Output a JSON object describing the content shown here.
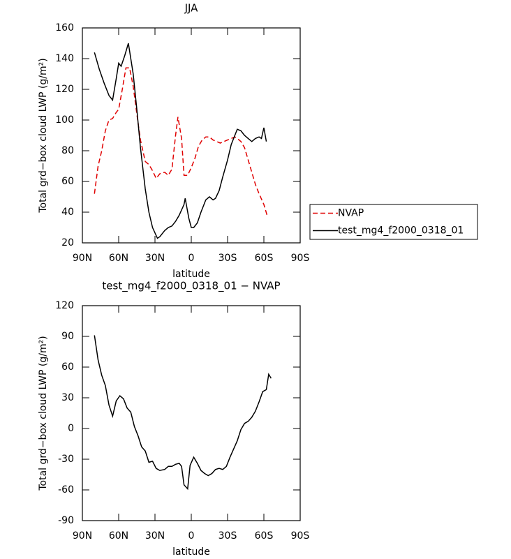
{
  "chart_data": [
    {
      "type": "line",
      "title": "JJA",
      "x_label": "latitude",
      "y_label": "Total grd−box cloud LWP (g/m²)",
      "xlim": [
        90,
        -90
      ],
      "xticks": [
        {
          "value": 90,
          "label": "90N"
        },
        {
          "value": 60,
          "label": "60N"
        },
        {
          "value": 30,
          "label": "30N"
        },
        0,
        {
          "value": -30,
          "label": "30S"
        },
        {
          "value": -60,
          "label": "60S"
        },
        {
          "value": -90,
          "label": "90S"
        }
      ],
      "ylim": [
        20,
        160
      ],
      "yticks": [
        20,
        40,
        60,
        80,
        100,
        120,
        140,
        160
      ],
      "legend_position": "right",
      "series": [
        {
          "name": "NVAP",
          "color": "#e00000",
          "dash": "dashed",
          "x": [
            80,
            77,
            74,
            71,
            68,
            65,
            62,
            60,
            57,
            54,
            51,
            48,
            45,
            42,
            38,
            35,
            32,
            29,
            26,
            22,
            19,
            16,
            13,
            11,
            8,
            6,
            3,
            0,
            -3,
            -6,
            -9,
            -12,
            -15,
            -18,
            -21,
            -24,
            -27,
            -30,
            -33,
            -36,
            -38,
            -41,
            -44,
            -47,
            -50,
            -53,
            -56,
            -60,
            -63
          ],
          "values": [
            52,
            70,
            80,
            93,
            100,
            101,
            105,
            107,
            120,
            134,
            134,
            122,
            104,
            87,
            73,
            71,
            67,
            62,
            65,
            66,
            64,
            68,
            90,
            102,
            88,
            64,
            64,
            69,
            75,
            83,
            87,
            89,
            89,
            87,
            86,
            85,
            86,
            87,
            88,
            89,
            88,
            86,
            82,
            74,
            66,
            58,
            52,
            45,
            37
          ]
        },
        {
          "name": "test_mg4_f2000_0318_01",
          "color": "#000000",
          "dash": "solid",
          "x": [
            80,
            76,
            72,
            68,
            65,
            62,
            60,
            58,
            55,
            52,
            48,
            45,
            42,
            38,
            35,
            32,
            28,
            26,
            22,
            19,
            16,
            13,
            10,
            6,
            5,
            2,
            0,
            -2,
            -5,
            -8,
            -12,
            -15,
            -18,
            -20,
            -23,
            -26,
            -30,
            -33,
            -36,
            -38,
            -41,
            -44,
            -47,
            -50,
            -53,
            -56,
            -58,
            -60,
            -62
          ],
          "values": [
            144,
            133,
            124,
            116,
            113,
            127,
            137,
            135,
            142,
            150,
            130,
            107,
            82,
            55,
            40,
            30,
            23,
            24,
            28,
            30,
            31,
            34,
            38,
            45,
            49,
            36,
            30,
            30,
            33,
            40,
            48,
            50,
            48,
            49,
            54,
            63,
            74,
            84,
            90,
            94,
            93,
            90,
            88,
            86,
            88,
            89,
            88,
            95,
            86
          ]
        }
      ]
    },
    {
      "type": "line",
      "title": "test_mg4_f2000_0318_01 − NVAP",
      "x_label": "latitude",
      "y_label": "Total grd−box cloud LWP (g/m²)",
      "xlim": [
        90,
        -90
      ],
      "xticks": [
        {
          "value": 90,
          "label": "90N"
        },
        {
          "value": 60,
          "label": "60N"
        },
        {
          "value": 30,
          "label": "30N"
        },
        0,
        {
          "value": -30,
          "label": "30S"
        },
        {
          "value": -60,
          "label": "60S"
        },
        {
          "value": -90,
          "label": "90S"
        }
      ],
      "ylim": [
        -90,
        120
      ],
      "yticks": [
        -90,
        -60,
        -30,
        0,
        30,
        60,
        90,
        120
      ],
      "series": [
        {
          "color": "#000000",
          "dash": "solid",
          "x": [
            80,
            77,
            74,
            71,
            68,
            65,
            62,
            59,
            56,
            53,
            50,
            47,
            44,
            41,
            38,
            35,
            32,
            29,
            26,
            22,
            19,
            16,
            13,
            10,
            8,
            6,
            3,
            1,
            -2,
            -5,
            -8,
            -11,
            -14,
            -17,
            -20,
            -23,
            -26,
            -29,
            -32,
            -35,
            -38,
            -41,
            -44,
            -47,
            -50,
            -53,
            -56,
            -59,
            -62,
            -64,
            -66
          ],
          "values": [
            91,
            67,
            52,
            42,
            23,
            12,
            27,
            32,
            29,
            20,
            16,
            2,
            -7,
            -18,
            -22,
            -33,
            -32,
            -39,
            -41,
            -40,
            -37,
            -37,
            -35,
            -34,
            -37,
            -55,
            -59,
            -36,
            -28,
            -34,
            -41,
            -44,
            -46,
            -44,
            -40,
            -39,
            -40,
            -37,
            -28,
            -20,
            -12,
            -1,
            5,
            7,
            11,
            17,
            26,
            36,
            38,
            53,
            49
          ]
        }
      ]
    }
  ]
}
